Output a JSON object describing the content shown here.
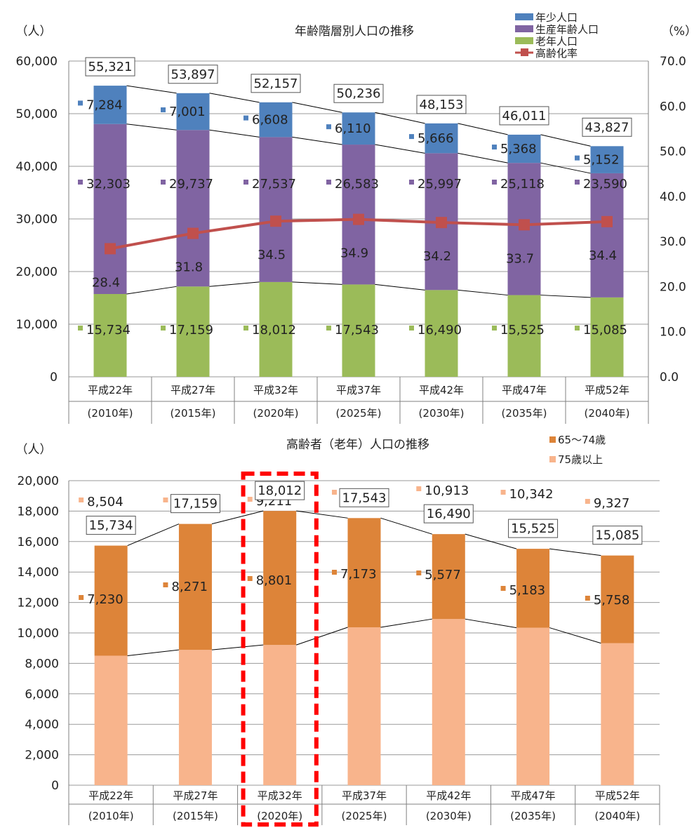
{
  "chart_data": [
    {
      "type": "bar",
      "title": "年齢階層別人口の推移",
      "ylabel_left": "（人）",
      "ylabel_right": "（%）",
      "ylim_left": [
        0,
        60000
      ],
      "ylim_right": [
        0,
        70
      ],
      "y_ticks_left": [
        "0",
        "10,000",
        "20,000",
        "30,000",
        "40,000",
        "50,000",
        "60,000"
      ],
      "y_ticks_right": [
        "0.0",
        "10.0",
        "20.0",
        "30.0",
        "40.0",
        "50.0",
        "60.0",
        "70.0"
      ],
      "categories": [
        {
          "line1": "平成22年",
          "line2": "(2010年)"
        },
        {
          "line1": "平成27年",
          "line2": "(2015年)"
        },
        {
          "line1": "平成32年",
          "line2": "(2020年)"
        },
        {
          "line1": "平成37年",
          "line2": "(2025年)"
        },
        {
          "line1": "平成42年",
          "line2": "(2030年)"
        },
        {
          "line1": "平成47年",
          "line2": "(2035年)"
        },
        {
          "line1": "平成52年",
          "line2": "(2040年)"
        }
      ],
      "series": [
        {
          "name": "老年人口",
          "values": [
            15734,
            17159,
            18012,
            17543,
            16490,
            15525,
            15085
          ],
          "labels": [
            "15,734",
            "17,159",
            "18,012",
            "17,543",
            "16,490",
            "15,525",
            "15,085"
          ]
        },
        {
          "name": "生産年齢人口",
          "values": [
            32303,
            29737,
            27537,
            26583,
            25997,
            25118,
            23590
          ],
          "labels": [
            "32,303",
            "29,737",
            "27,537",
            "26,583",
            "25,997",
            "25,118",
            "23,590"
          ]
        },
        {
          "name": "年少人口",
          "values": [
            7284,
            7001,
            6608,
            6110,
            5666,
            5368,
            5152
          ],
          "labels": [
            "7,284",
            "7,001",
            "6,608",
            "6,110",
            "5,666",
            "5,368",
            "5,152"
          ]
        }
      ],
      "totals": [
        "55,321",
        "53,897",
        "52,157",
        "50,236",
        "48,153",
        "46,011",
        "43,827"
      ],
      "line_series": {
        "name": "高齢化率",
        "values": [
          28.4,
          31.8,
          34.5,
          34.9,
          34.2,
          33.7,
          34.4
        ],
        "labels": [
          "28.4",
          "31.8",
          "34.5",
          "34.9",
          "34.2",
          "33.7",
          "34.4"
        ]
      },
      "legend": [
        {
          "name": "年少人口",
          "marker": "bar"
        },
        {
          "name": "生産年齢人口",
          "marker": "bar"
        },
        {
          "name": "老年人口",
          "marker": "bar"
        },
        {
          "name": "高齢化率",
          "marker": "line"
        }
      ],
      "legend_position": "top-right",
      "colors": {
        "young": "#4f81bd",
        "working": "#8064a2",
        "elderly": "#9bbb59",
        "ratio": "#c0504d"
      }
    },
    {
      "type": "bar",
      "title": "高齢者（老年）人口の推移",
      "ylabel": "（人）",
      "ylim": [
        0,
        20000
      ],
      "y_ticks": [
        "0",
        "2,000",
        "4,000",
        "6,000",
        "8,000",
        "10,000",
        "12,000",
        "14,000",
        "16,000",
        "18,000",
        "20,000"
      ],
      "categories": [
        {
          "line1": "平成22年",
          "line2": "(2010年)"
        },
        {
          "line1": "平成27年",
          "line2": "(2015年)"
        },
        {
          "line1": "平成32年",
          "line2": "(2020年)"
        },
        {
          "line1": "平成37年",
          "line2": "(2025年)"
        },
        {
          "line1": "平成42年",
          "line2": "(2030年)"
        },
        {
          "line1": "平成47年",
          "line2": "(2035年)"
        },
        {
          "line1": "平成52年",
          "line2": "(2040年)"
        }
      ],
      "series": [
        {
          "name": "75歳以上",
          "values": [
            8504,
            8888,
            9211,
            10370,
            10913,
            10342,
            9327
          ],
          "labels": [
            "8,504",
            "8,888",
            "9,211",
            "10,370",
            "10,913",
            "10,342",
            "9,327"
          ]
        },
        {
          "name": "65～74歳",
          "values": [
            7230,
            8271,
            8801,
            7173,
            5577,
            5183,
            5758
          ],
          "labels": [
            "7,230",
            "8,271",
            "8,801",
            "7,173",
            "5,577",
            "5,183",
            "5,758"
          ]
        }
      ],
      "totals": [
        "15,734",
        "17,159",
        "18,012",
        "17,543",
        "16,490",
        "15,525",
        "15,085"
      ],
      "legend": [
        {
          "name": "65～74歳"
        },
        {
          "name": "75歳以上"
        }
      ],
      "legend_position": "top-right",
      "highlight_category_index": 2,
      "colors": {
        "age65_74": "#dd8439",
        "age75plus": "#f8b48c",
        "highlight": "#ff0000"
      }
    }
  ]
}
